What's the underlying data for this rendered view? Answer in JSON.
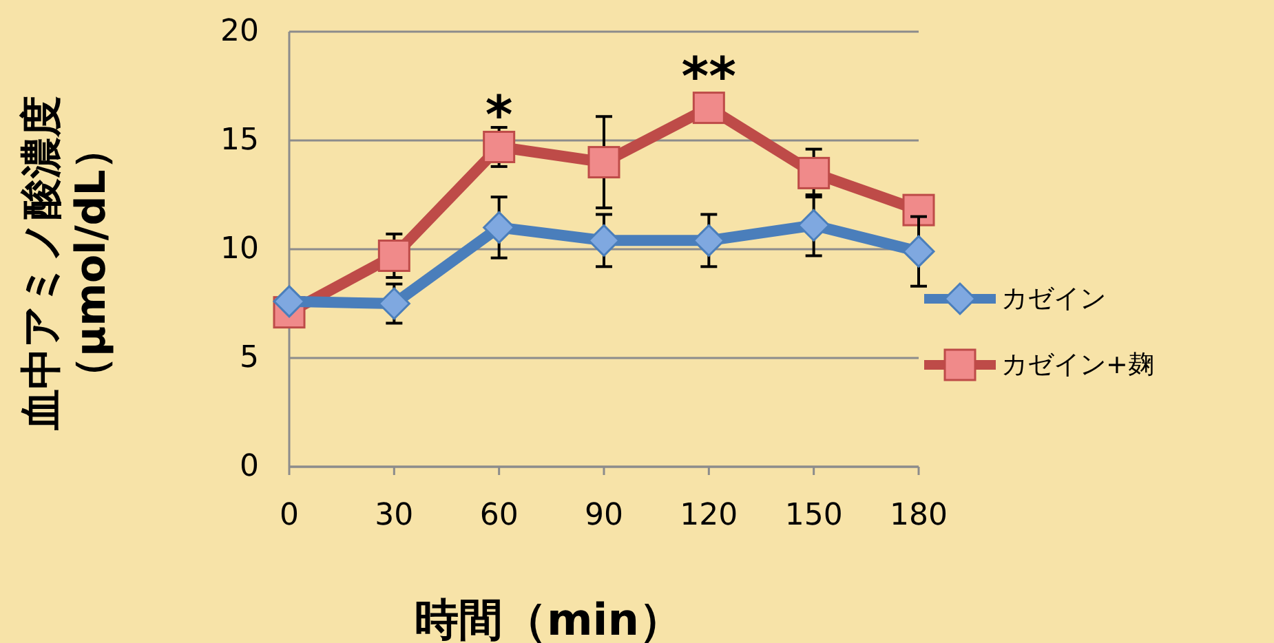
{
  "chart_data": {
    "type": "line",
    "xlabel": "時間（min）",
    "ylabel": "血中アミノ酸濃度（μmol/dL）",
    "x": [
      0,
      30,
      60,
      90,
      120,
      150,
      180
    ],
    "xlim": [
      0,
      180
    ],
    "xticks": [
      0,
      30,
      60,
      90,
      120,
      150,
      180
    ],
    "ylim": [
      0,
      20
    ],
    "yticks": [
      0,
      5,
      10,
      15,
      20
    ],
    "grid": "y",
    "legend": "right",
    "series": [
      {
        "name": "カゼイン",
        "color": "#4a7ebb",
        "marker": "diamond",
        "values": [
          7.6,
          7.5,
          11.0,
          10.4,
          10.4,
          11.1,
          9.9
        ],
        "errors": [
          null,
          0.9,
          1.4,
          1.2,
          1.2,
          1.4,
          1.6
        ]
      },
      {
        "name": "カゼイン+麹",
        "color": "#be4b48",
        "marker": "square",
        "values": [
          7.1,
          9.7,
          14.7,
          14.0,
          16.5,
          13.5,
          11.8
        ],
        "errors": [
          null,
          1.0,
          0.9,
          2.1,
          null,
          1.1,
          null
        ]
      }
    ],
    "annotations": [
      {
        "text": "*",
        "x": 60,
        "y": 14.7
      },
      {
        "text": "**",
        "x": 120,
        "y": 16.5
      }
    ]
  }
}
